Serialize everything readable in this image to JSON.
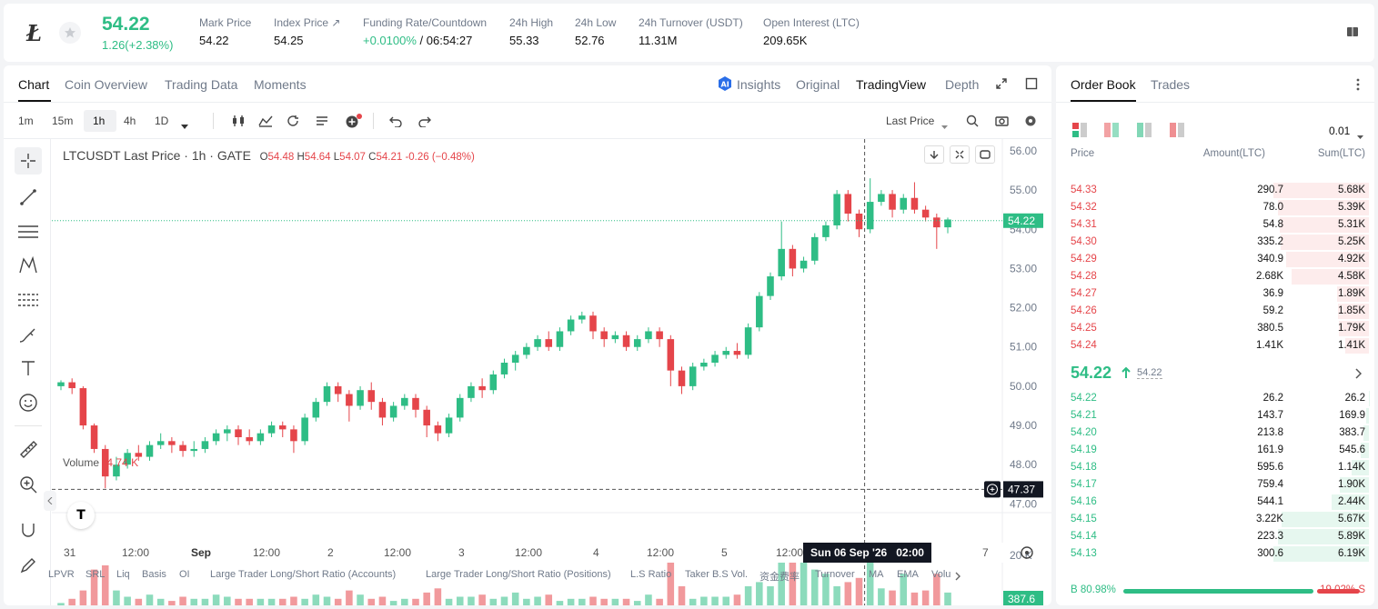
{
  "ticker": {
    "price": "54.22",
    "change": "1.26(+2.38%)",
    "stats": [
      {
        "label": "Mark Price",
        "value": "54.22"
      },
      {
        "label": "Index Price ↗",
        "value": "54.25"
      },
      {
        "label": "Funding Rate/Countdown",
        "value": "+0.0100%",
        "value2": "/ 06:54:27"
      },
      {
        "label": "24h High",
        "value": "55.33"
      },
      {
        "label": "24h Low",
        "value": "52.76"
      },
      {
        "label": "24h Turnover (USDT)",
        "value": "11.31M"
      },
      {
        "label": "Open Interest (LTC)",
        "value": "209.65K"
      }
    ]
  },
  "chart_tabs": [
    "Chart",
    "Coin Overview",
    "Trading Data",
    "Moments"
  ],
  "chart_tabs_right": {
    "insights": "Insights",
    "original": "Original",
    "tradingview": "TradingView",
    "depth": "Depth"
  },
  "intervals": [
    "1m",
    "15m",
    "1h",
    "4h",
    "1D"
  ],
  "price_type": "Last Price",
  "legend": {
    "symbol": "LTCUSDT Last Price · 1h · GATE",
    "o": "54.48",
    "h": "54.64",
    "l": "54.07",
    "c": "54.21",
    "chg": "-0.26 (−0.48%)"
  },
  "volume": {
    "label": "Volume",
    "value": "4.74 K"
  },
  "y_ticks": [
    "56.00",
    "55.00",
    "54.00",
    "53.00",
    "52.00",
    "51.00",
    "50.00",
    "49.00",
    "48.00",
    "47.00"
  ],
  "vol_tick": "20 K",
  "last_price_tag": "54.22",
  "cross_price_tag": "47.37",
  "vol_tag": "387.6",
  "x_ticks": [
    "31",
    "12:00",
    "Sep",
    "12:00",
    "2",
    "12:00",
    "3",
    "12:00",
    "4",
    "12:00",
    "5",
    "12:00",
    "7"
  ],
  "crosshair_date": "Sun 06 Sep '26   02:00",
  "indicators": [
    "LPVR",
    "SRL",
    "Liq",
    "Basis",
    "OI",
    "Large Trader Long/Short Ratio (Accounts)",
    "Large Trader Long/Short Ratio (Positions)",
    "L.S Ratio",
    "Taker B.S Vol.",
    "资金费率",
    "Turnover",
    "MA",
    "EMA",
    "Volu"
  ],
  "orderbook": {
    "tabs": [
      "Order Book",
      "Trades"
    ],
    "precision": "0.01",
    "headers": [
      "Price",
      "Amount(LTC)",
      "Sum(LTC)"
    ],
    "asks": [
      [
        "54.33",
        "290.7",
        "5.68K",
        1
      ],
      [
        "54.32",
        "78.0",
        "5.39K",
        0.949
      ],
      [
        "54.31",
        "54.8",
        "5.31K",
        0.935
      ],
      [
        "54.30",
        "335.2",
        "5.25K",
        0.924
      ],
      [
        "54.29",
        "340.9",
        "4.92K",
        0.866
      ],
      [
        "54.28",
        "2.68K",
        "4.58K",
        0.806
      ],
      [
        "54.27",
        "36.9",
        "1.89K",
        0.333
      ],
      [
        "54.26",
        "59.2",
        "1.85K",
        0.326
      ],
      [
        "54.25",
        "380.5",
        "1.79K",
        0.315
      ],
      [
        "54.24",
        "1.41K",
        "1.41K",
        0.248
      ]
    ],
    "mid_price": "54.22",
    "mark_price": "54.22",
    "bids": [
      [
        "54.22",
        "26.2",
        "26.2",
        0.004
      ],
      [
        "54.21",
        "143.7",
        "169.9",
        0.027
      ],
      [
        "54.20",
        "213.8",
        "383.7",
        0.062
      ],
      [
        "54.19",
        "161.9",
        "545.6",
        0.088
      ],
      [
        "54.18",
        "595.6",
        "1.14K",
        0.184
      ],
      [
        "54.17",
        "759.4",
        "1.90K",
        0.307
      ],
      [
        "54.16",
        "544.1",
        "2.44K",
        0.394
      ],
      [
        "54.15",
        "3.22K",
        "5.67K",
        0.916
      ],
      [
        "54.14",
        "223.3",
        "5.89K",
        0.952
      ],
      [
        "54.13",
        "300.6",
        "6.19K",
        1
      ]
    ],
    "buy_pct": "B 80.98%",
    "sell_pct": "19.02% S",
    "buy_ratio": 0.8098
  },
  "colors": {
    "up": "#2ebd85",
    "down": "#e5454a"
  },
  "candles": [
    [
      50.0,
      50.1,
      49.9,
      50.15
    ],
    [
      50.1,
      49.95,
      49.8,
      50.2
    ],
    [
      49.95,
      49.0,
      48.9,
      50.0
    ],
    [
      49.0,
      48.4,
      48.3,
      49.05
    ],
    [
      48.4,
      47.7,
      47.4,
      48.5
    ],
    [
      47.7,
      48.0,
      47.6,
      48.2
    ],
    [
      48.0,
      48.3,
      47.9,
      48.4
    ],
    [
      48.3,
      48.2,
      48.1,
      48.5
    ],
    [
      48.2,
      48.5,
      48.1,
      48.6
    ],
    [
      48.5,
      48.6,
      48.4,
      48.8
    ],
    [
      48.6,
      48.5,
      48.3,
      48.7
    ],
    [
      48.5,
      48.35,
      48.2,
      48.6
    ],
    [
      48.35,
      48.4,
      48.2,
      48.6
    ],
    [
      48.4,
      48.6,
      48.3,
      48.7
    ],
    [
      48.6,
      48.8,
      48.5,
      48.9
    ],
    [
      48.8,
      48.9,
      48.6,
      49.0
    ],
    [
      48.9,
      48.7,
      48.5,
      49.0
    ],
    [
      48.7,
      48.6,
      48.5,
      48.9
    ],
    [
      48.6,
      48.8,
      48.5,
      48.9
    ],
    [
      48.8,
      49.0,
      48.7,
      49.1
    ],
    [
      49.0,
      48.9,
      48.7,
      49.1
    ],
    [
      48.9,
      48.6,
      48.3,
      49.0
    ],
    [
      48.6,
      49.2,
      48.5,
      49.3
    ],
    [
      49.2,
      49.6,
      49.1,
      49.7
    ],
    [
      49.6,
      50.0,
      49.5,
      50.1
    ],
    [
      50.0,
      49.8,
      49.6,
      50.1
    ],
    [
      49.8,
      49.5,
      49.1,
      49.9
    ],
    [
      49.5,
      49.9,
      49.4,
      50.0
    ],
    [
      49.9,
      49.6,
      49.4,
      50.1
    ],
    [
      49.6,
      49.2,
      49.0,
      49.7
    ],
    [
      49.2,
      49.5,
      49.1,
      49.6
    ],
    [
      49.5,
      49.7,
      49.4,
      49.8
    ],
    [
      49.7,
      49.4,
      49.2,
      49.8
    ],
    [
      49.4,
      49.0,
      48.7,
      49.5
    ],
    [
      49.0,
      48.8,
      48.6,
      49.1
    ],
    [
      48.8,
      49.2,
      48.7,
      49.3
    ],
    [
      49.2,
      49.7,
      49.1,
      49.8
    ],
    [
      49.7,
      50.0,
      49.6,
      50.1
    ],
    [
      50.0,
      49.9,
      49.7,
      50.2
    ],
    [
      49.9,
      50.3,
      49.8,
      50.4
    ],
    [
      50.3,
      50.6,
      50.2,
      50.7
    ],
    [
      50.6,
      50.8,
      50.4,
      50.9
    ],
    [
      50.8,
      51.0,
      50.7,
      51.1
    ],
    [
      51.0,
      51.2,
      50.9,
      51.3
    ],
    [
      51.2,
      51.0,
      50.9,
      51.4
    ],
    [
      51.0,
      51.4,
      50.9,
      51.5
    ],
    [
      51.4,
      51.7,
      51.3,
      51.8
    ],
    [
      51.7,
      51.8,
      51.6,
      51.9
    ],
    [
      51.8,
      51.4,
      51.2,
      51.9
    ],
    [
      51.4,
      51.2,
      51.0,
      51.5
    ],
    [
      51.2,
      51.3,
      51.1,
      51.4
    ],
    [
      51.3,
      51.0,
      50.9,
      51.4
    ],
    [
      51.0,
      51.2,
      50.9,
      51.3
    ],
    [
      51.2,
      51.4,
      51.1,
      51.5
    ],
    [
      51.4,
      51.2,
      51.0,
      51.5
    ],
    [
      51.2,
      50.4,
      50.0,
      51.3
    ],
    [
      50.4,
      50.0,
      49.8,
      50.5
    ],
    [
      50.0,
      50.5,
      49.9,
      50.6
    ],
    [
      50.5,
      50.6,
      50.4,
      50.7
    ],
    [
      50.6,
      50.8,
      50.5,
      50.9
    ],
    [
      50.8,
      50.9,
      50.7,
      51.0
    ],
    [
      50.9,
      50.8,
      50.7,
      51.1
    ],
    [
      50.8,
      51.5,
      50.7,
      51.6
    ],
    [
      51.5,
      52.3,
      51.4,
      52.4
    ],
    [
      52.3,
      52.8,
      52.2,
      52.9
    ],
    [
      52.8,
      53.5,
      52.7,
      54.2
    ],
    [
      53.5,
      53.0,
      52.8,
      53.6
    ],
    [
      53.0,
      53.2,
      52.9,
      53.3
    ],
    [
      53.2,
      53.8,
      53.1,
      53.9
    ],
    [
      53.8,
      54.1,
      53.7,
      54.2
    ],
    [
      54.1,
      54.9,
      54.0,
      55.0
    ],
    [
      54.9,
      54.4,
      54.2,
      55.0
    ],
    [
      54.4,
      54.0,
      53.8,
      54.5
    ],
    [
      54.0,
      54.7,
      53.9,
      55.3
    ],
    [
      54.7,
      54.9,
      54.6,
      55.0
    ],
    [
      54.9,
      54.5,
      54.3,
      55.0
    ],
    [
      54.5,
      54.8,
      54.4,
      54.9
    ],
    [
      54.8,
      54.5,
      54.4,
      55.2
    ],
    [
      54.5,
      54.3,
      54.2,
      54.6
    ],
    [
      54.3,
      54.05,
      53.5,
      54.4
    ],
    [
      54.05,
      54.25,
      53.9,
      54.3
    ]
  ],
  "volumes": [
    2,
    4,
    8,
    18,
    20,
    8,
    5,
    4,
    6,
    4,
    3,
    5,
    4,
    4,
    6,
    5,
    4,
    4,
    4,
    4,
    4,
    5,
    4,
    6,
    5,
    4,
    8,
    6,
    4,
    5,
    3,
    4,
    4,
    7,
    9,
    4,
    5,
    5,
    6,
    4,
    5,
    7,
    4,
    5,
    6,
    3,
    4,
    4,
    5,
    4,
    4,
    4,
    3,
    6,
    4,
    26,
    10,
    4,
    5,
    5,
    5,
    6,
    10,
    12,
    10,
    22,
    30,
    24,
    18,
    16,
    10,
    12,
    14,
    22,
    9,
    8,
    16,
    7,
    8,
    16,
    7
  ]
}
